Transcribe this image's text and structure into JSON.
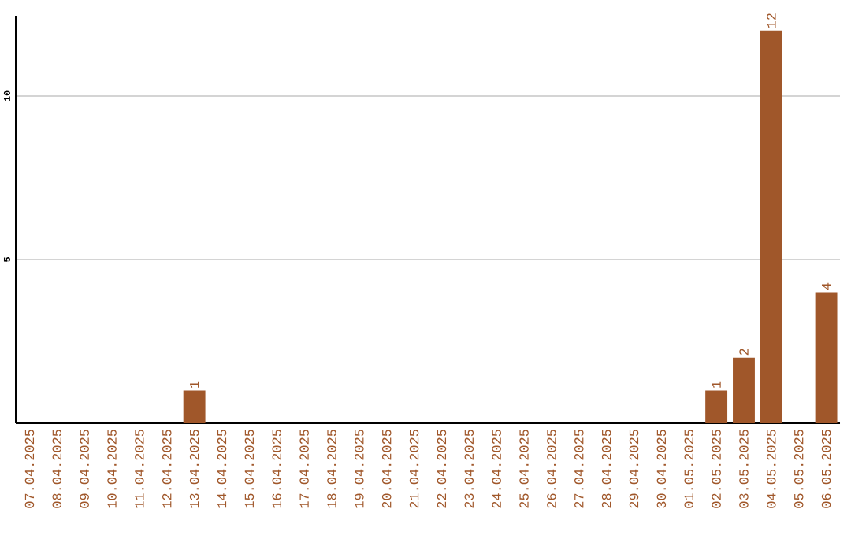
{
  "chart_data": {
    "type": "bar",
    "categories": [
      "07.04.2025",
      "08.04.2025",
      "09.04.2025",
      "10.04.2025",
      "11.04.2025",
      "12.04.2025",
      "13.04.2025",
      "14.04.2025",
      "15.04.2025",
      "16.04.2025",
      "17.04.2025",
      "18.04.2025",
      "19.04.2025",
      "20.04.2025",
      "21.04.2025",
      "22.04.2025",
      "23.04.2025",
      "24.04.2025",
      "25.04.2025",
      "26.04.2025",
      "27.04.2025",
      "28.04.2025",
      "29.04.2025",
      "30.04.2025",
      "01.05.2025",
      "02.05.2025",
      "03.05.2025",
      "04.05.2025",
      "05.05.2025",
      "06.05.2025"
    ],
    "values": [
      0,
      0,
      0,
      0,
      0,
      0,
      1,
      0,
      0,
      0,
      0,
      0,
      0,
      0,
      0,
      0,
      0,
      0,
      0,
      0,
      0,
      0,
      0,
      0,
      0,
      1,
      2,
      12,
      0,
      4
    ],
    "value_labels": [
      null,
      null,
      null,
      null,
      null,
      null,
      "1",
      null,
      null,
      null,
      null,
      null,
      null,
      null,
      null,
      null,
      null,
      null,
      null,
      null,
      null,
      null,
      null,
      null,
      null,
      "1",
      "2",
      "12",
      null,
      "4"
    ],
    "color": "#a0572a",
    "ylim": [
      0,
      12.45
    ],
    "yticks": [
      5,
      10
    ],
    "grid": "y"
  }
}
